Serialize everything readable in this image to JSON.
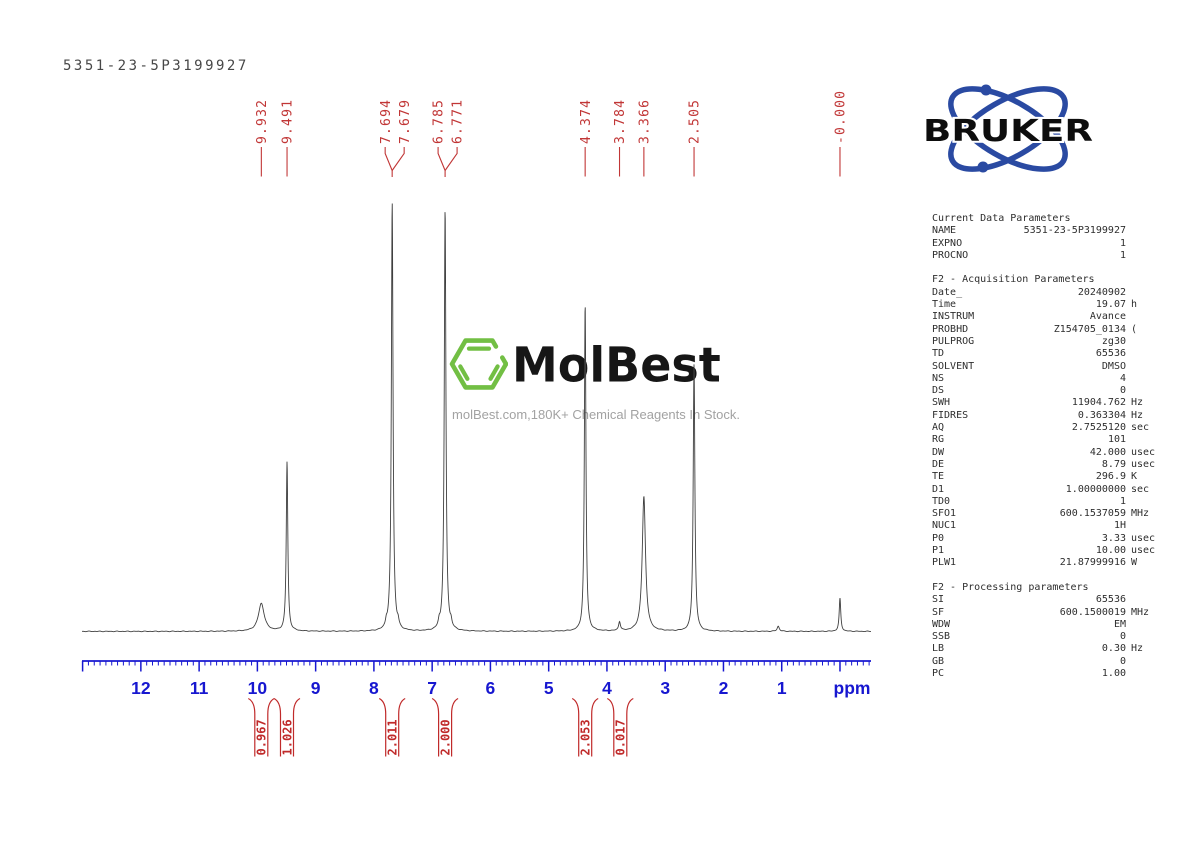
{
  "title": "5351-23-5P3199927",
  "bruker": {
    "wordmark": "BRUKER"
  },
  "watermark": {
    "name": "MolBest",
    "tagline": "molBest.com,180K+ Chemical Reagents In Stock."
  },
  "colors": {
    "peak_label_red": "#c13636",
    "integral_red": "#c02a2a",
    "axis_blue": "#1717d0",
    "spectrum_line": "#3f3f3f",
    "bruker_blue": "#2a4aa2",
    "bruker_text": "#0d0d0d",
    "molbest_green": "#72bf44",
    "tagline_gray": "#a2a2a2",
    "param_text": "#2e2e2e",
    "title_gray": "#474747"
  },
  "chart_data": {
    "type": "line",
    "description": "1H NMR spectrum (600 MHz, DMSO)",
    "x_axis": {
      "label": "ppm",
      "min": -0.55,
      "max": 13.0,
      "reversed": true,
      "major_tick_step": 1,
      "minor_tick_step": 0.1,
      "labeled_ticks": [
        12,
        11,
        10,
        9,
        8,
        7,
        6,
        5,
        4,
        3,
        2,
        1
      ]
    },
    "peak_labels": [
      {
        "label": "9.932",
        "ppm": 9.932,
        "pair": null
      },
      {
        "label": "9.491",
        "ppm": 9.491,
        "pair": null
      },
      {
        "label": "7.694",
        "ppm": 7.694,
        "pair": "d1"
      },
      {
        "label": "7.679",
        "ppm": 7.679,
        "pair": "d1"
      },
      {
        "label": "6.785",
        "ppm": 6.785,
        "pair": "d2"
      },
      {
        "label": "6.771",
        "ppm": 6.771,
        "pair": "d2"
      },
      {
        "label": "4.374",
        "ppm": 4.374,
        "pair": null
      },
      {
        "label": "3.784",
        "ppm": 3.784,
        "pair": null
      },
      {
        "label": "3.366",
        "ppm": 3.366,
        "pair": null
      },
      {
        "label": "2.505",
        "ppm": 2.505,
        "pair": null
      },
      {
        "label": "-0.000",
        "ppm": 0.0,
        "pair": null
      }
    ],
    "curve_peaks": [
      {
        "ppm": 9.932,
        "rel_height": 0.065,
        "halfwidth_ppm": 0.06
      },
      {
        "ppm": 9.491,
        "rel_height": 0.395,
        "halfwidth_ppm": 0.016
      },
      {
        "ppm": 7.787,
        "rel_height": 0.012,
        "halfwidth_ppm": 0.017
      },
      {
        "ppm": 7.686,
        "rel_height": 1.0,
        "halfwidth_ppm": 0.017
      },
      {
        "ppm": 7.585,
        "rel_height": 0.012,
        "halfwidth_ppm": 0.017
      },
      {
        "ppm": 6.88,
        "rel_height": 0.012,
        "halfwidth_ppm": 0.017
      },
      {
        "ppm": 6.778,
        "rel_height": 0.984,
        "halfwidth_ppm": 0.017
      },
      {
        "ppm": 6.676,
        "rel_height": 0.012,
        "halfwidth_ppm": 0.017
      },
      {
        "ppm": 4.374,
        "rel_height": 0.763,
        "halfwidth_ppm": 0.016
      },
      {
        "ppm": 3.784,
        "rel_height": 0.021,
        "halfwidth_ppm": 0.019
      },
      {
        "ppm": 3.366,
        "rel_height": 0.314,
        "halfwidth_ppm": 0.034
      },
      {
        "ppm": 2.505,
        "rel_height": 0.623,
        "halfwidth_ppm": 0.017
      },
      {
        "ppm": 1.06,
        "rel_height": 0.012,
        "halfwidth_ppm": 0.022
      },
      {
        "ppm": 0.0,
        "rel_height": 0.077,
        "halfwidth_ppm": 0.016
      }
    ],
    "integrals": [
      {
        "value": "0.967",
        "ppm": 9.932
      },
      {
        "value": "1.026",
        "ppm": 9.491
      },
      {
        "value": "2.011",
        "ppm": 7.686
      },
      {
        "value": "2.000",
        "ppm": 6.778
      },
      {
        "value": "2.053",
        "ppm": 4.374
      },
      {
        "value": "0.017",
        "ppm": 3.77
      }
    ]
  },
  "parameters": {
    "rows": [
      {
        "h": "Current Data Parameters"
      },
      {
        "n": "NAME",
        "v": "5351-23-5P3199927",
        "u": ""
      },
      {
        "n": "EXPNO",
        "v": "1",
        "u": ""
      },
      {
        "n": "PROCNO",
        "v": "1",
        "u": ""
      },
      {
        "gap": true
      },
      {
        "h": "F2 - Acquisition Parameters"
      },
      {
        "n": "Date_",
        "v": "20240902",
        "u": ""
      },
      {
        "n": "Time",
        "v": "19.07",
        "u": "h"
      },
      {
        "n": "INSTRUM",
        "v": "Avance",
        "u": ""
      },
      {
        "n": "PROBHD",
        "v": "Z154705_0134",
        "u": "("
      },
      {
        "n": "PULPROG",
        "v": "zg30",
        "u": ""
      },
      {
        "n": "TD",
        "v": "65536",
        "u": ""
      },
      {
        "n": "SOLVENT",
        "v": "DMSO",
        "u": ""
      },
      {
        "n": "NS",
        "v": "4",
        "u": ""
      },
      {
        "n": "DS",
        "v": "0",
        "u": ""
      },
      {
        "n": "SWH",
        "v": "11904.762",
        "u": "Hz"
      },
      {
        "n": "FIDRES",
        "v": "0.363304",
        "u": "Hz"
      },
      {
        "n": "AQ",
        "v": "2.7525120",
        "u": "sec"
      },
      {
        "n": "RG",
        "v": "101",
        "u": ""
      },
      {
        "n": "DW",
        "v": "42.000",
        "u": "usec"
      },
      {
        "n": "DE",
        "v": "8.79",
        "u": "usec"
      },
      {
        "n": "TE",
        "v": "296.9",
        "u": "K"
      },
      {
        "n": "D1",
        "v": "1.00000000",
        "u": "sec"
      },
      {
        "n": "TD0",
        "v": "1",
        "u": ""
      },
      {
        "n": "SFO1",
        "v": "600.1537059",
        "u": "MHz"
      },
      {
        "n": "NUC1",
        "v": "1H",
        "u": ""
      },
      {
        "n": "P0",
        "v": "3.33",
        "u": "usec"
      },
      {
        "n": "P1",
        "v": "10.00",
        "u": "usec"
      },
      {
        "n": "PLW1",
        "v": "21.87999916",
        "u": "W"
      },
      {
        "gap": true
      },
      {
        "h": "F2 - Processing parameters"
      },
      {
        "n": "SI",
        "v": "65536",
        "u": ""
      },
      {
        "n": "SF",
        "v": "600.1500019",
        "u": "MHz"
      },
      {
        "n": "WDW",
        "v": "EM",
        "u": ""
      },
      {
        "n": "SSB",
        "v": "0",
        "u": ""
      },
      {
        "n": "LB",
        "v": "0.30",
        "u": "Hz"
      },
      {
        "n": "GB",
        "v": "0",
        "u": ""
      },
      {
        "n": "PC",
        "v": "1.00",
        "u": ""
      }
    ]
  }
}
